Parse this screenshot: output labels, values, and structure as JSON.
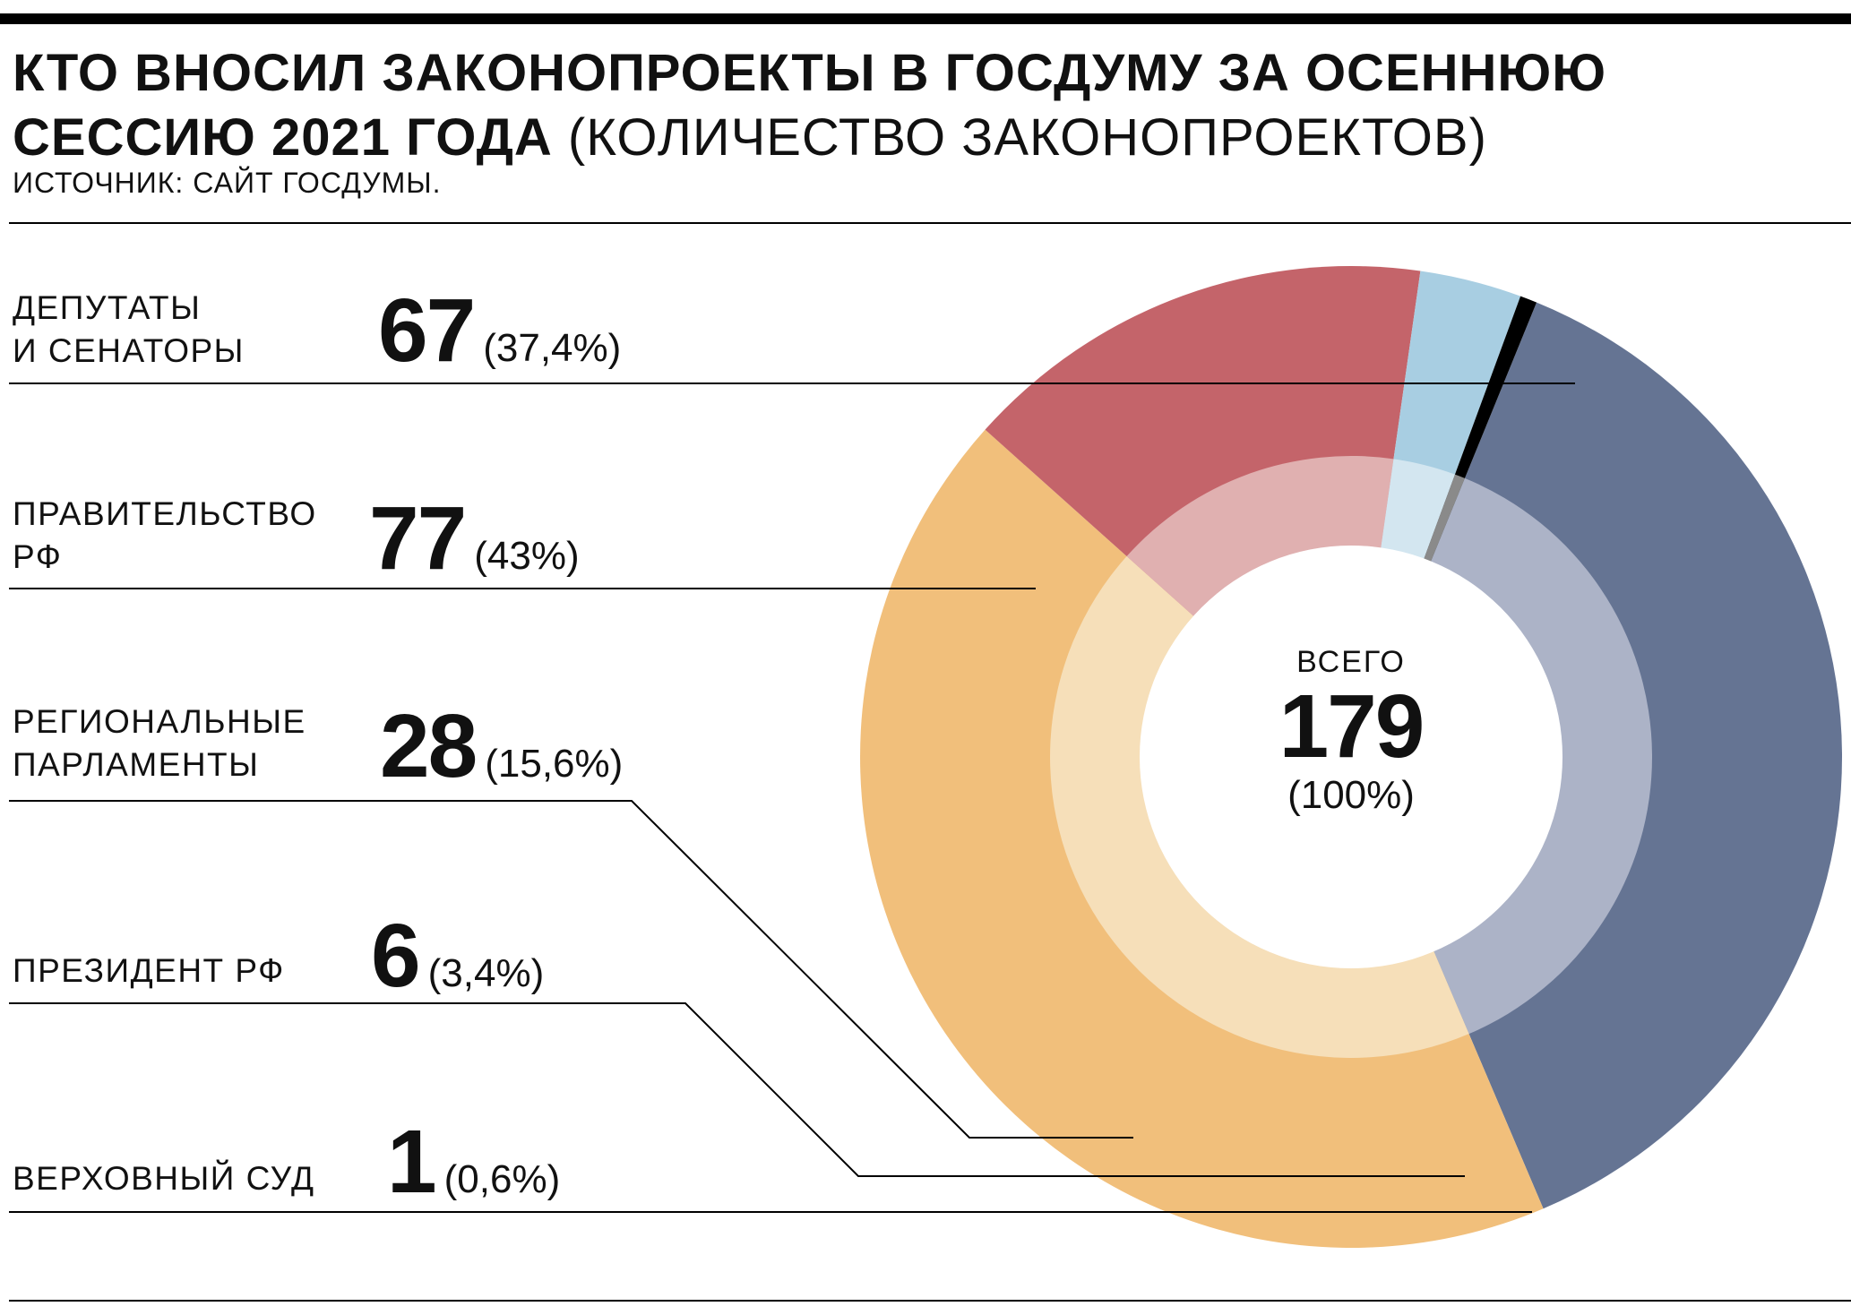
{
  "header": {
    "title_bold": "КТО ВНОСИЛ ЗАКОНОПРОЕКТЫ В ГОСДУМУ ЗА ОСЕННЮЮ СЕССИЮ 2021 ГОДА",
    "title_note": "(КОЛИЧЕСТВО ЗАКОНОПРОЕКТОВ)",
    "source": "ИСТОЧНИК: САЙТ ГОСДУМЫ."
  },
  "chart_data": {
    "type": "pie",
    "title": "КТО ВНОСИЛ ЗАКОНОПРОЕКТЫ В ГОСДУМУ ЗА ОСЕННЮЮ СЕССИЮ 2021 ГОДА",
    "units": "(КОЛИЧЕСТВО ЗАКОНОПРОЕКТОВ)",
    "total": {
      "label": "ВСЕГО",
      "value": "179",
      "pct": "(100%)"
    },
    "slices": [
      {
        "label": "ДЕПУТАТЫ И СЕНАТОРЫ",
        "label_lines": [
          "ДЕПУТАТЫ",
          "И СЕНАТОРЫ"
        ],
        "value": 67,
        "value_text": "67",
        "pct": "(37,4%)",
        "color": "#657493",
        "inner_color": "#acb3c7"
      },
      {
        "label": "ПРАВИТЕЛЬСТВО РФ",
        "label_lines": [
          "ПРАВИТЕЛЬСТВО",
          "РФ"
        ],
        "value": 77,
        "value_text": "77",
        "pct": "(43%)",
        "color": "#f1bf7b",
        "inner_color": "#f6dfb9"
      },
      {
        "label": "РЕГИОНАЛЬНЫЕ ПАРЛАМЕНТЫ",
        "label_lines": [
          "РЕГИОНАЛЬНЫЕ",
          "ПАРЛАМЕНТЫ"
        ],
        "value": 28,
        "value_text": "28",
        "pct": "(15,6%)",
        "color": "#c4646a",
        "inner_color": "#e0b0b0"
      },
      {
        "label": "ПРЕЗИДЕНТ РФ",
        "label_lines": [
          "ПРЕЗИДЕНТ РФ"
        ],
        "value": 6,
        "value_text": "6",
        "pct": "(3,4%)",
        "color": "#a8cee2",
        "inner_color": "#d3e6f0"
      },
      {
        "label": "ВЕРХОВНЫЙ СУД",
        "label_lines": [
          "ВЕРХОВНЫЙ СУД"
        ],
        "value": 1,
        "value_text": "1",
        "pct": "(0,6%)",
        "color": "#000000",
        "inner_color": "#8a8a8a"
      }
    ]
  }
}
